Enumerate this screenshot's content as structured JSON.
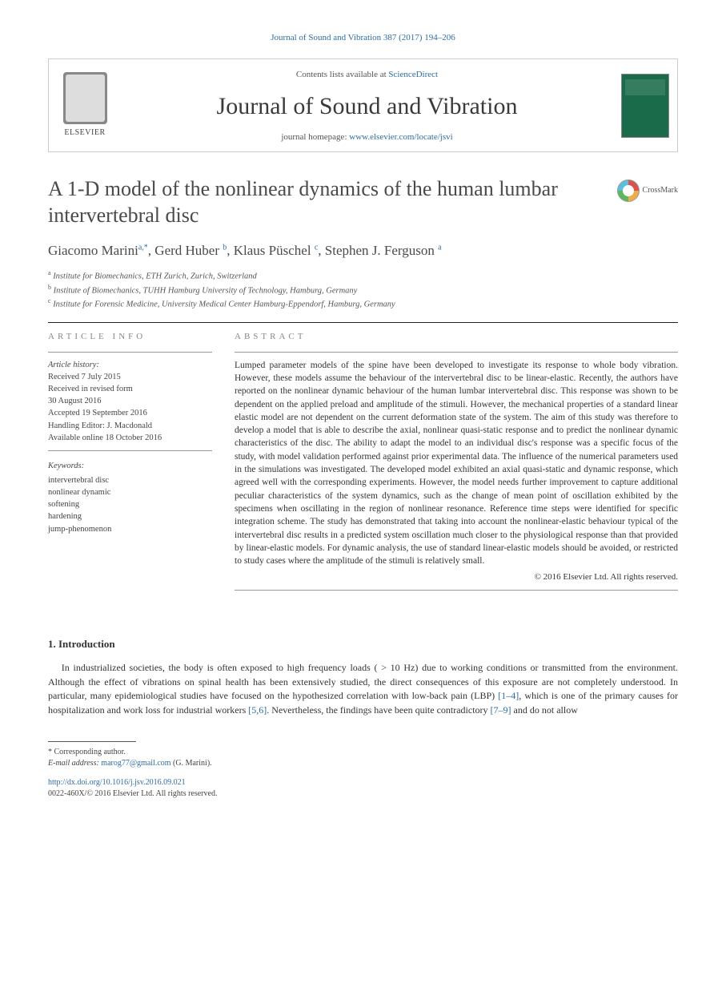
{
  "citation": "Journal of Sound and Vibration 387 (2017) 194–206",
  "header": {
    "contents_prefix": "Contents lists available at ",
    "contents_link": "ScienceDirect",
    "journal_name": "Journal of Sound and Vibration",
    "homepage_prefix": "journal homepage: ",
    "homepage_url": "www.elsevier.com/locate/jsvi",
    "publisher": "ELSEVIER"
  },
  "crossmark_label": "CrossMark",
  "title": "A 1-D model of the nonlinear dynamics of the human lumbar intervertebral disc",
  "authors_html": "Giacomo Marini",
  "authors": [
    {
      "name": "Giacomo Marini",
      "affil": "a,",
      "corr": "*"
    },
    {
      "name": "Gerd Huber",
      "affil": "b"
    },
    {
      "name": "Klaus Püschel",
      "affil": "c"
    },
    {
      "name": "Stephen J. Ferguson",
      "affil": "a"
    }
  ],
  "affiliations": [
    {
      "sup": "a",
      "text": "Institute for Biomechanics, ETH Zurich, Zurich, Switzerland"
    },
    {
      "sup": "b",
      "text": "Institute of Biomechanics, TUHH Hamburg University of Technology, Hamburg, Germany"
    },
    {
      "sup": "c",
      "text": "Institute for Forensic Medicine, University Medical Center Hamburg-Eppendorf, Hamburg, Germany"
    }
  ],
  "info_heading": "ARTICLE INFO",
  "abstract_heading": "ABSTRACT",
  "history": {
    "label": "Article history:",
    "received": "Received 7 July 2015",
    "revised1": "Received in revised form",
    "revised2": "30 August 2016",
    "accepted": "Accepted 19 September 2016",
    "editor": "Handling Editor: J. Macdonald",
    "online": "Available online 18 October 2016"
  },
  "keywords_label": "Keywords:",
  "keywords": [
    "intervertebral disc",
    "nonlinear dynamic",
    "softening",
    "hardening",
    "jump-phenomenon"
  ],
  "abstract": "Lumped parameter models of the spine have been developed to investigate its response to whole body vibration. However, these models assume the behaviour of the intervertebral disc to be linear-elastic. Recently, the authors have reported on the nonlinear dynamic behaviour of the human lumbar intervertebral disc. This response was shown to be dependent on the applied preload and amplitude of the stimuli. However, the mechanical properties of a standard linear elastic model are not dependent on the current deformation state of the system. The aim of this study was therefore to develop a model that is able to describe the axial, nonlinear quasi-static response and to predict the nonlinear dynamic characteristics of the disc. The ability to adapt the model to an individual disc's response was a specific focus of the study, with model validation performed against prior experimental data. The influence of the numerical parameters used in the simulations was investigated. The developed model exhibited an axial quasi-static and dynamic response, which agreed well with the corresponding experiments. However, the model needs further improvement to capture additional peculiar characteristics of the system dynamics, such as the change of mean point of oscillation exhibited by the specimens when oscillating in the region of nonlinear resonance. Reference time steps were identified for specific integration scheme. The study has demonstrated that taking into account the nonlinear-elastic behaviour typical of the intervertebral disc results in a predicted system oscillation much closer to the physiological response than that provided by linear-elastic models. For dynamic analysis, the use of standard linear-elastic models should be avoided, or restricted to study cases where the amplitude of the stimuli is relatively small.",
  "copyright": "© 2016 Elsevier Ltd. All rights reserved.",
  "intro_heading": "1. Introduction",
  "intro_para": "In industrialized societies, the body is often exposed to high frequency loads ( > 10 Hz) due to working conditions or transmitted from the environment. Although the effect of vibrations on spinal health has been extensively studied, the direct consequences of this exposure are not completely understood. In particular, many epidemiological studies have focused on the hypothesized correlation with low-back pain (LBP) ",
  "intro_ref1": "[1–4]",
  "intro_mid": ", which is one of the primary causes for hospitalization and work loss for industrial workers ",
  "intro_ref2": "[5,6]",
  "intro_mid2": ". Nevertheless, the findings have been quite contradictory ",
  "intro_ref3": "[7–9]",
  "intro_end": " and do not allow",
  "footnotes": {
    "corr": "* Corresponding author.",
    "email_label": "E-mail address: ",
    "email": "marog77@gmail.com",
    "email_suffix": " (G. Marini)."
  },
  "doi": "http://dx.doi.org/10.1016/j.jsv.2016.09.021",
  "issn_line": "0022-460X/© 2016 Elsevier Ltd. All rights reserved.",
  "colors": {
    "link": "#2e6da4",
    "text": "#333333",
    "muted": "#888888",
    "cover": "#1a6b4a"
  }
}
